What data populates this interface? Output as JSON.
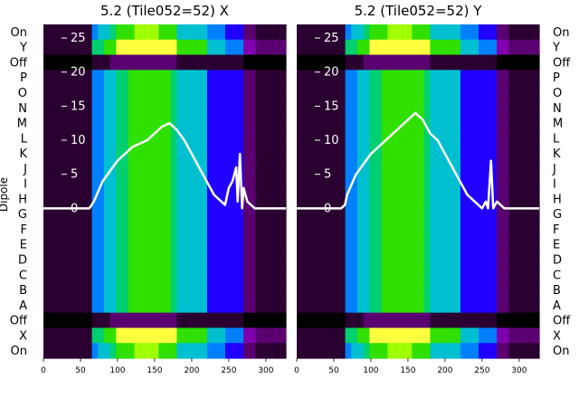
{
  "chart_data": {
    "type": "heatmap",
    "ylabel": "Dipole",
    "dipole_labels": [
      "On",
      "X",
      "Off",
      "A",
      "B",
      "C",
      "D",
      "E",
      "F",
      "G",
      "H",
      "I",
      "J",
      "K",
      "L",
      "M",
      "N",
      "O",
      "P",
      "Off",
      "Y",
      "On"
    ],
    "dipole_labels_right": [
      "On",
      "Y",
      "Off",
      "P",
      "O",
      "N",
      "M",
      "L",
      "K",
      "J",
      "I",
      "H",
      "G",
      "F",
      "E",
      "D",
      "C",
      "B",
      "A",
      "Off",
      "X",
      "On"
    ],
    "x_ticks": [
      0,
      50,
      100,
      150,
      200,
      250,
      300
    ],
    "xlim": [
      0,
      327
    ],
    "overlay_y_ticks": [
      0,
      5,
      10,
      15,
      20,
      25
    ],
    "overlay_ylim": [
      -22,
      27
    ],
    "panels": [
      {
        "title": "5.2 (Tile052=52) X",
        "overlay_series": [
          {
            "x": [
              0,
              62,
              68,
              80,
              100,
              120,
              140,
              150,
              160,
              170,
              180,
              190,
              200,
              210,
              220,
              230,
              240,
              245,
              250,
              255,
              260,
              262,
              265,
              268,
              270,
              275,
              280,
              285,
              290,
              327
            ],
            "y": [
              0,
              0,
              1,
              4,
              7,
              9,
              10,
              11,
              12,
              12.5,
              11.5,
              10,
              8,
              6,
              4,
              2,
              1,
              0.5,
              3,
              4,
              6,
              1,
              8,
              0,
              3,
              1,
              0.5,
              0,
              0,
              0
            ]
          }
        ]
      },
      {
        "title": "5.2 (Tile052=52) Y",
        "overlay_series": [
          {
            "x": [
              0,
              60,
              65,
              68,
              72,
              80,
              100,
              120,
              140,
              150,
              160,
              170,
              180,
              190,
              200,
              210,
              220,
              230,
              240,
              245,
              250,
              255,
              258,
              262,
              265,
              270,
              275,
              280,
              290,
              327
            ],
            "y": [
              0,
              0,
              0.5,
              2,
              3,
              5,
              8,
              10,
              12,
              13,
              14,
              13,
              11,
              10,
              8,
              6,
              4,
              2,
              1,
              0.5,
              0,
              1,
              0,
              7,
              0,
              1,
              0.5,
              0,
              0,
              0
            ]
          }
        ]
      }
    ]
  },
  "colors": {
    "overlay": "#ffffff",
    "colormap": [
      "#000000",
      "#2a0030",
      "#5a0070",
      "#8000b0",
      "#2000ff",
      "#0080ff",
      "#00c0d0",
      "#00d070",
      "#30e000",
      "#a0ff00",
      "#ffff40"
    ]
  }
}
